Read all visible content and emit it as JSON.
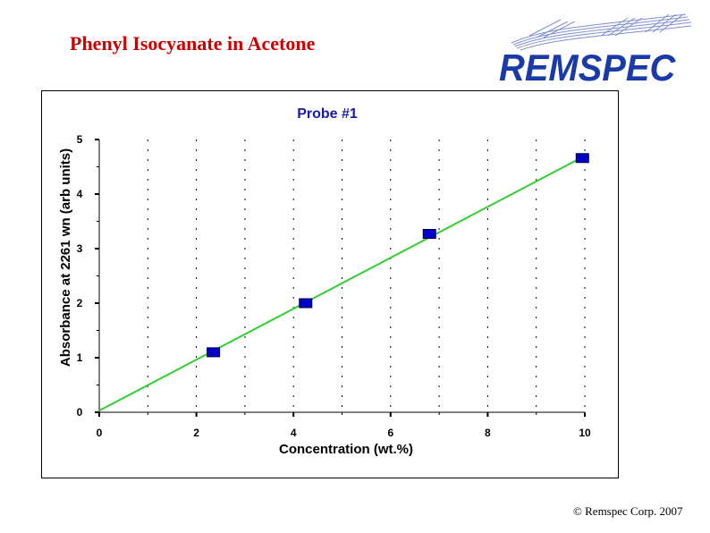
{
  "slide": {
    "title": "Phenyl Isocyanate in Acetone",
    "logo_text": "REMSPEC",
    "copyright": "© Remspec Corp. 2007"
  },
  "colors": {
    "title": "#cc0000",
    "logo": "#1a3aa8",
    "chart_text": "#1a1aaa",
    "marker": "#0000cc",
    "fit_line": "#33cc33",
    "grid": "#000000"
  },
  "chart_data": {
    "type": "scatter",
    "title": "Probe #1",
    "xlabel": "Concentration (wt.%)",
    "ylabel": "Absorbance at 2261 wn (arb units)",
    "xlim": [
      0,
      10
    ],
    "ylim": [
      0,
      5
    ],
    "x_ticks": [
      0,
      2,
      4,
      6,
      8,
      10
    ],
    "y_ticks": [
      0,
      1,
      2,
      3,
      4,
      5
    ],
    "x_tick_labels": [
      "0",
      "2",
      "4",
      "6",
      "8",
      "10"
    ],
    "y_tick_labels": [
      "0",
      "1",
      "2",
      "3",
      "4",
      "5"
    ],
    "grid": "vertical dashed",
    "legend": "none",
    "series": [
      {
        "marker": "square",
        "points": [
          {
            "x": 2.35,
            "y": 1.1
          },
          {
            "x": 4.25,
            "y": 2.0
          },
          {
            "x": 6.8,
            "y": 3.27
          },
          {
            "x": 9.95,
            "y": 4.66
          }
        ]
      }
    ],
    "fit_line": {
      "x0": 0,
      "y0": 0.03,
      "x1": 10,
      "y1": 4.7
    }
  }
}
